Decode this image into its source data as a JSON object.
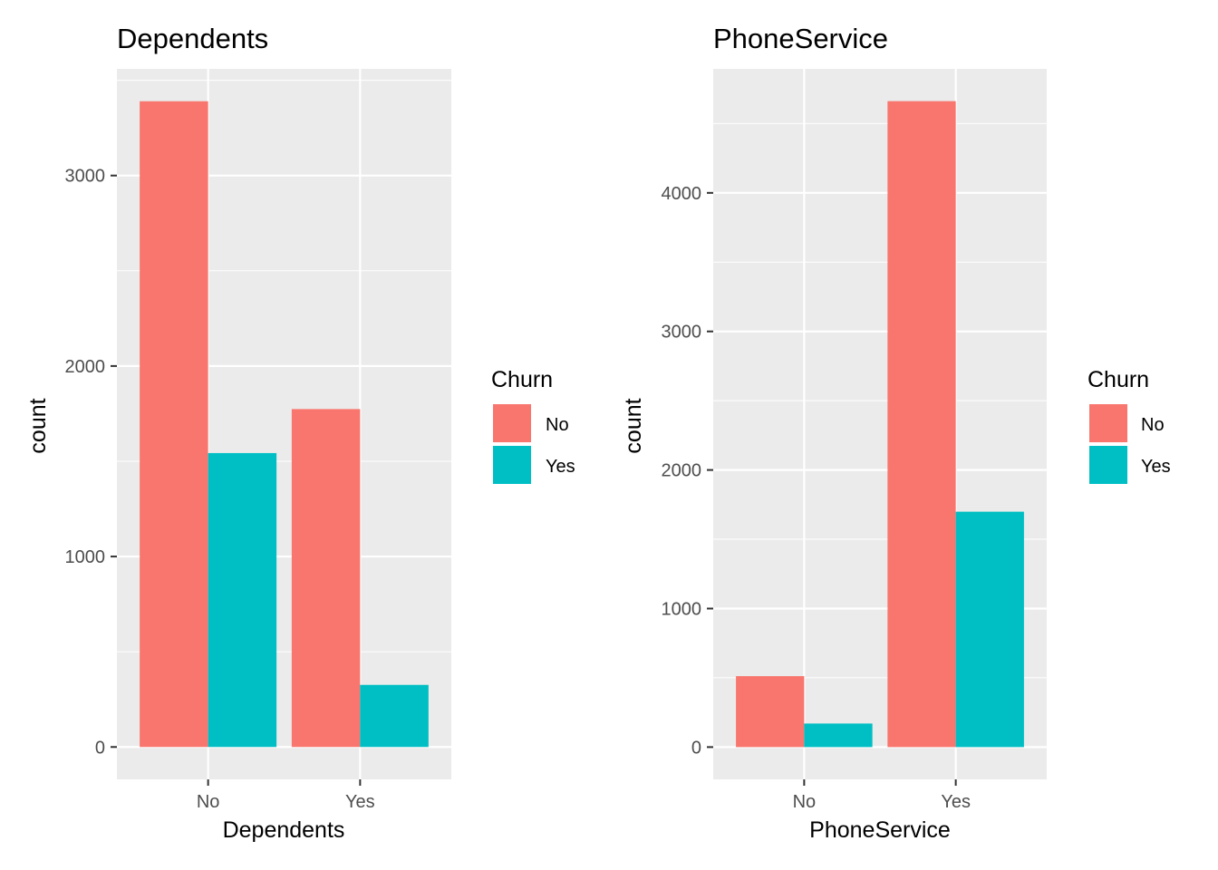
{
  "chart_data": [
    {
      "type": "bar",
      "title": "Dependents",
      "xlabel": "Dependents",
      "ylabel": "count",
      "categories": [
        "No",
        "Yes"
      ],
      "series": [
        {
          "name": "No",
          "values": [
            3390,
            1774
          ]
        },
        {
          "name": "Yes",
          "values": [
            1543,
            326
          ]
        }
      ],
      "ylim": [
        -170,
        3560
      ],
      "yticks": [
        0,
        1000,
        2000,
        3000
      ],
      "legend": {
        "title": "Churn",
        "placement": "right"
      },
      "grid": true
    },
    {
      "type": "bar",
      "title": "PhoneService",
      "xlabel": "PhoneService",
      "ylabel": "count",
      "categories": [
        "No",
        "Yes"
      ],
      "series": [
        {
          "name": "No",
          "values": [
            512,
            4662
          ]
        },
        {
          "name": "Yes",
          "values": [
            170,
            1699
          ]
        }
      ],
      "ylim": [
        -233,
        4895
      ],
      "yticks": [
        0,
        1000,
        2000,
        3000,
        4000
      ],
      "legend": {
        "title": "Churn",
        "placement": "right"
      },
      "grid": true
    }
  ],
  "colors": {
    "No": "#F8766D",
    "Yes": "#00BFC4",
    "panel": "#EBEBEB",
    "grid": "#FFFFFF"
  }
}
